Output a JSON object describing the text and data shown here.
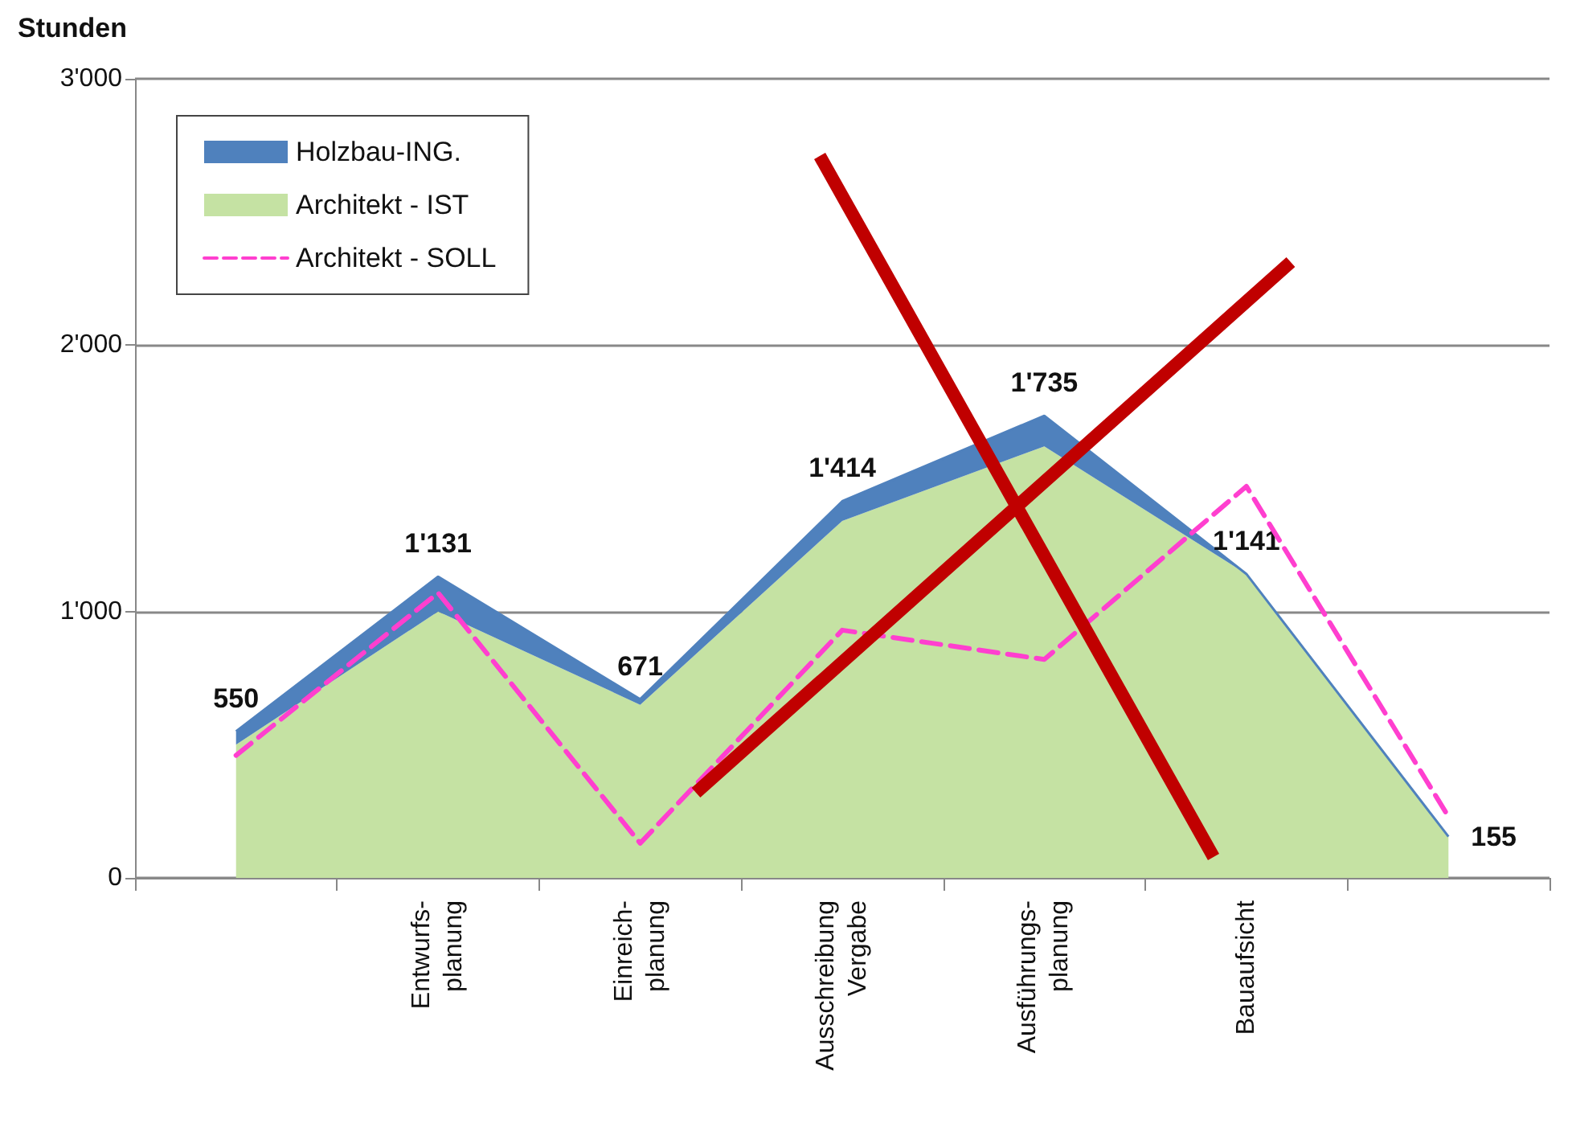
{
  "chart_data": {
    "type": "area",
    "ylabel": "Stunden",
    "categories": [
      null,
      "Entwurfs-\nplanung",
      "Einreich-\nplanung",
      "Ausschreibung\nVergabe",
      "Ausführungs-\nplanung",
      "Bauaufsicht",
      null
    ],
    "series": [
      {
        "name": "Architekt - IST",
        "color": "#c5e2a3",
        "values": [
          500,
          1000,
          650,
          1340,
          1620,
          1141,
          155
        ]
      },
      {
        "name": "Holzbau-ING.",
        "color": "#4f81bd",
        "values": [
          50,
          131,
          21,
          74,
          115,
          0,
          0
        ]
      },
      {
        "name": "Architekt - SOLL",
        "type": "line",
        "color": "#ff3fcf",
        "line_style": "dashed",
        "values": [
          460,
          1070,
          130,
          930,
          820,
          1470,
          230
        ]
      }
    ],
    "stacked": true,
    "totals": [
      "550",
      "1'131",
      "671",
      "1'414",
      "1'735",
      "1'141",
      "155"
    ],
    "ylim": [
      0,
      3000
    ],
    "yticks": [
      0,
      {
        "value": 1000,
        "label": "1'000"
      },
      {
        "value": 2000,
        "label": "2'000"
      },
      {
        "value": 3000,
        "label": "3'000"
      }
    ],
    "grid": "y",
    "legend": "top left",
    "marker": "none"
  }
}
